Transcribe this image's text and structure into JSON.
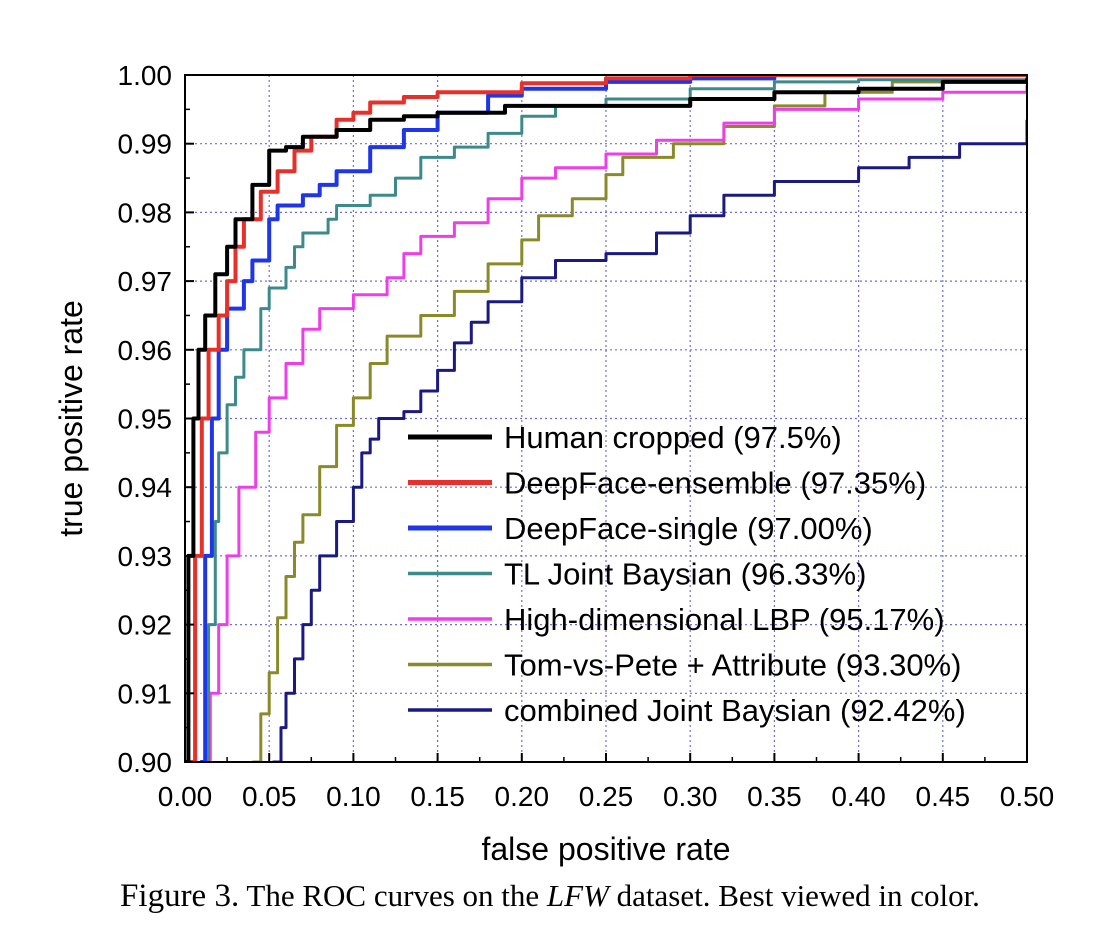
{
  "chart_data": {
    "type": "line",
    "xlabel": "false positive rate",
    "ylabel": "true positive rate",
    "xlim": [
      0,
      0.5
    ],
    "ylim": [
      0.9,
      1.0
    ],
    "xticks": [
      "0.00",
      "0.05",
      "0.10",
      "0.15",
      "0.20",
      "0.25",
      "0.30",
      "0.35",
      "0.40",
      "0.45",
      "0.50"
    ],
    "yticks": [
      "0.90",
      "0.91",
      "0.92",
      "0.93",
      "0.94",
      "0.95",
      "0.96",
      "0.97",
      "0.98",
      "0.99",
      "1.00"
    ],
    "grid": true,
    "legend_position": "lower-right",
    "series": [
      {
        "name": "Human cropped (97.5%)",
        "color": "#000000",
        "points": [
          [
            0.0,
            0.9
          ],
          [
            0.002,
            0.93
          ],
          [
            0.005,
            0.95
          ],
          [
            0.008,
            0.96
          ],
          [
            0.012,
            0.965
          ],
          [
            0.018,
            0.971
          ],
          [
            0.025,
            0.975
          ],
          [
            0.03,
            0.979
          ],
          [
            0.04,
            0.984
          ],
          [
            0.05,
            0.989
          ],
          [
            0.06,
            0.9895
          ],
          [
            0.07,
            0.991
          ],
          [
            0.09,
            0.992
          ],
          [
            0.11,
            0.9935
          ],
          [
            0.13,
            0.994
          ],
          [
            0.15,
            0.9945
          ],
          [
            0.19,
            0.9955
          ],
          [
            0.25,
            0.9955
          ],
          [
            0.3,
            0.9965
          ],
          [
            0.35,
            0.9975
          ],
          [
            0.4,
            0.998
          ],
          [
            0.45,
            0.999
          ],
          [
            0.5,
            0.9995
          ]
        ]
      },
      {
        "name": "DeepFace-ensemble (97.35%)",
        "color": "#e8302b",
        "points": [
          [
            0.003,
            0.9
          ],
          [
            0.006,
            0.93
          ],
          [
            0.01,
            0.95
          ],
          [
            0.014,
            0.96
          ],
          [
            0.02,
            0.965
          ],
          [
            0.025,
            0.97
          ],
          [
            0.03,
            0.975
          ],
          [
            0.035,
            0.979
          ],
          [
            0.045,
            0.983
          ],
          [
            0.055,
            0.986
          ],
          [
            0.065,
            0.989
          ],
          [
            0.075,
            0.991
          ],
          [
            0.09,
            0.9935
          ],
          [
            0.1,
            0.9945
          ],
          [
            0.11,
            0.996
          ],
          [
            0.13,
            0.9968
          ],
          [
            0.15,
            0.9975
          ],
          [
            0.2,
            0.9988
          ],
          [
            0.25,
            0.9995
          ],
          [
            0.3,
            1.0
          ],
          [
            0.5,
            1.0
          ]
        ]
      },
      {
        "name": "DeepFace-single (97.00%)",
        "color": "#1f35e8",
        "points": [
          [
            0.009,
            0.9
          ],
          [
            0.012,
            0.93
          ],
          [
            0.016,
            0.95
          ],
          [
            0.02,
            0.96
          ],
          [
            0.025,
            0.966
          ],
          [
            0.035,
            0.97
          ],
          [
            0.04,
            0.973
          ],
          [
            0.05,
            0.979
          ],
          [
            0.055,
            0.981
          ],
          [
            0.07,
            0.9825
          ],
          [
            0.08,
            0.984
          ],
          [
            0.09,
            0.986
          ],
          [
            0.11,
            0.9895
          ],
          [
            0.13,
            0.992
          ],
          [
            0.15,
            0.9945
          ],
          [
            0.18,
            0.997
          ],
          [
            0.2,
            0.998
          ],
          [
            0.25,
            0.999
          ],
          [
            0.3,
            0.9995
          ],
          [
            0.35,
            1.0
          ],
          [
            0.5,
            1.0
          ]
        ]
      },
      {
        "name": "TL Joint Baysian (96.33%)",
        "color": "#3d8a8a",
        "points": [
          [
            0.01,
            0.9
          ],
          [
            0.014,
            0.92
          ],
          [
            0.018,
            0.935
          ],
          [
            0.02,
            0.945
          ],
          [
            0.025,
            0.952
          ],
          [
            0.03,
            0.956
          ],
          [
            0.035,
            0.96
          ],
          [
            0.045,
            0.966
          ],
          [
            0.05,
            0.969
          ],
          [
            0.06,
            0.972
          ],
          [
            0.065,
            0.975
          ],
          [
            0.07,
            0.977
          ],
          [
            0.085,
            0.979
          ],
          [
            0.09,
            0.981
          ],
          [
            0.11,
            0.9825
          ],
          [
            0.125,
            0.985
          ],
          [
            0.14,
            0.988
          ],
          [
            0.16,
            0.9895
          ],
          [
            0.18,
            0.9915
          ],
          [
            0.2,
            0.994
          ],
          [
            0.22,
            0.9955
          ],
          [
            0.25,
            0.9965
          ],
          [
            0.3,
            0.998
          ],
          [
            0.35,
            0.999
          ],
          [
            0.4,
            0.9993
          ],
          [
            0.5,
            0.9997
          ]
        ]
      },
      {
        "name": "High-dimensional LBP (95.17%)",
        "color": "#ee3ee8",
        "points": [
          [
            0.013,
            0.9
          ],
          [
            0.015,
            0.91
          ],
          [
            0.02,
            0.92
          ],
          [
            0.025,
            0.93
          ],
          [
            0.032,
            0.94
          ],
          [
            0.042,
            0.948
          ],
          [
            0.05,
            0.953
          ],
          [
            0.06,
            0.958
          ],
          [
            0.07,
            0.963
          ],
          [
            0.08,
            0.966
          ],
          [
            0.1,
            0.968
          ],
          [
            0.12,
            0.9705
          ],
          [
            0.13,
            0.974
          ],
          [
            0.14,
            0.9765
          ],
          [
            0.16,
            0.9785
          ],
          [
            0.18,
            0.982
          ],
          [
            0.2,
            0.985
          ],
          [
            0.22,
            0.9865
          ],
          [
            0.25,
            0.9885
          ],
          [
            0.28,
            0.9905
          ],
          [
            0.32,
            0.993
          ],
          [
            0.35,
            0.995
          ],
          [
            0.4,
            0.9965
          ],
          [
            0.45,
            0.9975
          ],
          [
            0.5,
            0.9985
          ]
        ]
      },
      {
        "name": "Tom-vs-Pete + Attribute (93.30%)",
        "color": "#8a8a2a",
        "points": [
          [
            0.04,
            0.9
          ],
          [
            0.045,
            0.907
          ],
          [
            0.05,
            0.913
          ],
          [
            0.055,
            0.921
          ],
          [
            0.06,
            0.927
          ],
          [
            0.065,
            0.932
          ],
          [
            0.07,
            0.936
          ],
          [
            0.08,
            0.943
          ],
          [
            0.09,
            0.949
          ],
          [
            0.1,
            0.953
          ],
          [
            0.11,
            0.958
          ],
          [
            0.12,
            0.962
          ],
          [
            0.14,
            0.965
          ],
          [
            0.16,
            0.9685
          ],
          [
            0.18,
            0.9725
          ],
          [
            0.2,
            0.976
          ],
          [
            0.21,
            0.9795
          ],
          [
            0.23,
            0.982
          ],
          [
            0.25,
            0.9855
          ],
          [
            0.26,
            0.988
          ],
          [
            0.29,
            0.99
          ],
          [
            0.32,
            0.9925
          ],
          [
            0.35,
            0.9955
          ],
          [
            0.38,
            0.9975
          ],
          [
            0.42,
            0.999
          ],
          [
            0.5,
            0.9998
          ]
        ]
      },
      {
        "name": "combined Joint Baysian (92.42%)",
        "color": "#1a1a80",
        "points": [
          [
            0.052,
            0.9
          ],
          [
            0.057,
            0.905
          ],
          [
            0.06,
            0.91
          ],
          [
            0.065,
            0.915
          ],
          [
            0.07,
            0.92
          ],
          [
            0.075,
            0.925
          ],
          [
            0.08,
            0.93
          ],
          [
            0.09,
            0.935
          ],
          [
            0.1,
            0.94
          ],
          [
            0.105,
            0.945
          ],
          [
            0.11,
            0.947
          ],
          [
            0.115,
            0.95
          ],
          [
            0.13,
            0.951
          ],
          [
            0.14,
            0.954
          ],
          [
            0.15,
            0.957
          ],
          [
            0.16,
            0.961
          ],
          [
            0.17,
            0.964
          ],
          [
            0.18,
            0.967
          ],
          [
            0.2,
            0.9705
          ],
          [
            0.22,
            0.973
          ],
          [
            0.25,
            0.974
          ],
          [
            0.28,
            0.977
          ],
          [
            0.3,
            0.9795
          ],
          [
            0.32,
            0.9825
          ],
          [
            0.35,
            0.9845
          ],
          [
            0.4,
            0.9865
          ],
          [
            0.43,
            0.988
          ],
          [
            0.46,
            0.99
          ],
          [
            0.5,
            0.9935
          ]
        ]
      }
    ]
  },
  "caption": {
    "label": "Figure 3.",
    "text_before": "The ROC curves on the",
    "dataset": "LFW",
    "text_after": "dataset. Best viewed in color."
  }
}
